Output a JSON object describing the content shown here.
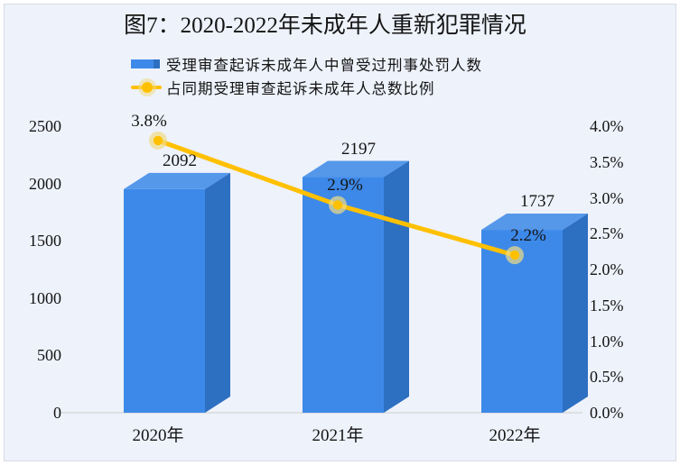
{
  "figure": {
    "background": "#eef2fb",
    "border_color": "#d7dbe6",
    "baseline_color": "#d9d9d9"
  },
  "chart_data": {
    "type": "bar",
    "subtype": "3d-column-with-line-overlay",
    "title": "图7：2020-2022年未成年人重新犯罪情况",
    "categories": [
      "2020年",
      "2021年",
      "2022年"
    ],
    "series": [
      {
        "name": "受理审查起诉未成年人中曾受过刑事处罚人数",
        "type": "bar",
        "axis": "left",
        "values": [
          2092,
          2197,
          1737
        ],
        "labels": [
          "2092",
          "2197",
          "1737"
        ],
        "colors": {
          "front": "#3d89e9",
          "top": "#5598ea",
          "side": "#2d6fc1"
        }
      },
      {
        "name": "占同期受理审查起诉未成年人总数比例",
        "type": "line",
        "axis": "right",
        "values": [
          3.8,
          2.9,
          2.2
        ],
        "labels": [
          "3.8%",
          "2.9%",
          "2.2%"
        ],
        "color": "#ffc000",
        "marker_halo": "#f0db83"
      }
    ],
    "left_axis": {
      "min": 0,
      "max": 2500,
      "tick_values": [
        2500,
        2000,
        1500,
        1000,
        500,
        0
      ],
      "tick_labels": [
        "2500",
        "2000",
        "1500",
        "1000",
        "500",
        "0"
      ]
    },
    "right_axis": {
      "min": 0,
      "max": 4,
      "tick_values": [
        4,
        3.5,
        3,
        2.5,
        2,
        1.5,
        1,
        0.5,
        0
      ],
      "tick_labels": [
        "4.0%",
        "3.5%",
        "3.0%",
        "2.5%",
        "2.0%",
        "1.5%",
        "1.0%",
        "0.5%",
        "0.0%"
      ]
    },
    "grid": false,
    "legend_position": "top"
  }
}
